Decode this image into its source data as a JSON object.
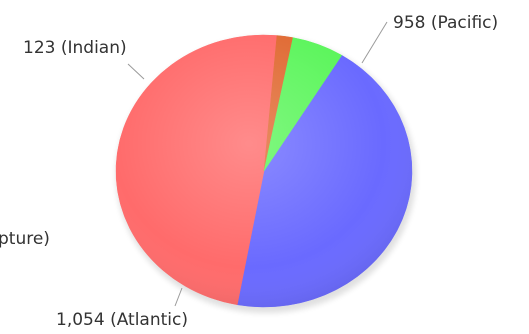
{
  "chart_data": {
    "type": "pie",
    "slices": [
      {
        "name": "Pacific",
        "value": 958,
        "label": "958 (Pacific)",
        "color": "#6a6aff"
      },
      {
        "name": "Atlantic",
        "value": 1054,
        "label": "1,054 (Atlantic)",
        "color": "#ff6b6b"
      },
      {
        "name": "Capture",
        "value": 38,
        "label": "pture)",
        "color": "#e06a33"
      },
      {
        "name": "Indian",
        "value": 123,
        "label": "123 (Indian)",
        "color": "#5cf55c"
      }
    ],
    "title": "",
    "legend": "none"
  }
}
